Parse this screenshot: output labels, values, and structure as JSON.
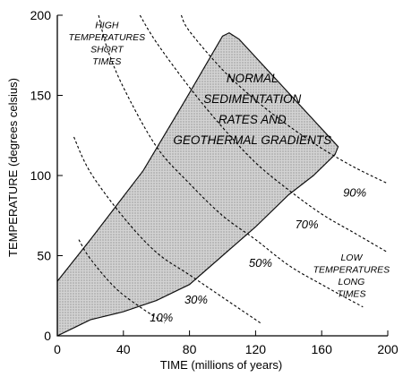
{
  "chart_data": {
    "type": "line",
    "xlabel": "TIME (millions of years)",
    "ylabel": "TEMPERATURE (degrees celsius)",
    "xlim": [
      0,
      200
    ],
    "ylim": [
      0,
      200
    ],
    "xticks": [
      0,
      40,
      80,
      120,
      160,
      200
    ],
    "yticks": [
      0,
      50,
      100,
      150,
      200
    ],
    "xtick_labels": [
      "0",
      "40",
      "80",
      "120",
      "160",
      "200"
    ],
    "ytick_labels": [
      "0",
      "50",
      "100",
      "150",
      "200"
    ],
    "grid": false,
    "region": {
      "fill": "#d3d3d3",
      "outline": [
        [
          0,
          34
        ],
        [
          20,
          60
        ],
        [
          52,
          103
        ],
        [
          78,
          148
        ],
        [
          100,
          187
        ],
        [
          104,
          189
        ],
        [
          110,
          185
        ],
        [
          170,
          118
        ],
        [
          168,
          113
        ],
        [
          155,
          100
        ],
        [
          140,
          88
        ],
        [
          120,
          68
        ],
        [
          100,
          50
        ],
        [
          80,
          32
        ],
        [
          60,
          22
        ],
        [
          40,
          15
        ],
        [
          20,
          10
        ],
        [
          10,
          5
        ],
        [
          0,
          0
        ]
      ]
    },
    "series": [
      {
        "name": "10%",
        "points": [
          [
            13,
            60
          ],
          [
            20,
            48
          ],
          [
            35,
            30
          ],
          [
            50,
            18
          ],
          [
            65,
            8
          ]
        ]
      },
      {
        "name": "30%",
        "points": [
          [
            10,
            124
          ],
          [
            20,
            102
          ],
          [
            40,
            74
          ],
          [
            60,
            52
          ],
          [
            80,
            38
          ],
          [
            100,
            24
          ],
          [
            123,
            8
          ]
        ]
      },
      {
        "name": "50%",
        "points": [
          [
            25,
            200
          ],
          [
            30,
            180
          ],
          [
            40,
            155
          ],
          [
            60,
            118
          ],
          [
            80,
            95
          ],
          [
            100,
            75
          ],
          [
            120,
            60
          ],
          [
            140,
            44
          ],
          [
            160,
            32
          ],
          [
            185,
            18
          ]
        ]
      },
      {
        "name": "70%",
        "points": [
          [
            50,
            200
          ],
          [
            60,
            183
          ],
          [
            80,
            155
          ],
          [
            100,
            130
          ],
          [
            120,
            108
          ],
          [
            140,
            91
          ],
          [
            160,
            76
          ],
          [
            180,
            64
          ],
          [
            200,
            52
          ]
        ]
      },
      {
        "name": "90%",
        "points": [
          [
            75,
            200
          ],
          [
            80,
            190
          ],
          [
            100,
            166
          ],
          [
            120,
            147
          ],
          [
            140,
            131
          ],
          [
            160,
            117
          ],
          [
            180,
            105
          ],
          [
            200,
            95
          ]
        ]
      }
    ],
    "series_labels": [
      {
        "text": "10%",
        "x": 63,
        "y": 9
      },
      {
        "text": "30%",
        "x": 84,
        "y": 20
      },
      {
        "text": "50%",
        "x": 123,
        "y": 43
      },
      {
        "text": "70%",
        "x": 151,
        "y": 67
      },
      {
        "text": "90%",
        "x": 180,
        "y": 87
      }
    ],
    "annotations": [
      {
        "id": "high-temps",
        "lines": [
          "HIGH",
          "TEMPERATURES",
          "SHORT",
          "TIMES"
        ],
        "x": 30,
        "y": 192,
        "size": "small"
      },
      {
        "id": "normal",
        "lines": [
          "NORMAL",
          "SEDIMENTATION",
          "RATES AND",
          "GEOTHERMAL GRADIENTS"
        ],
        "x": 118,
        "y": 158,
        "size": "big"
      },
      {
        "id": "low-temps",
        "lines": [
          "LOW",
          "TEMPERATURES",
          "LONG",
          "TIMES"
        ],
        "x": 178,
        "y": 47,
        "size": "small"
      }
    ]
  }
}
